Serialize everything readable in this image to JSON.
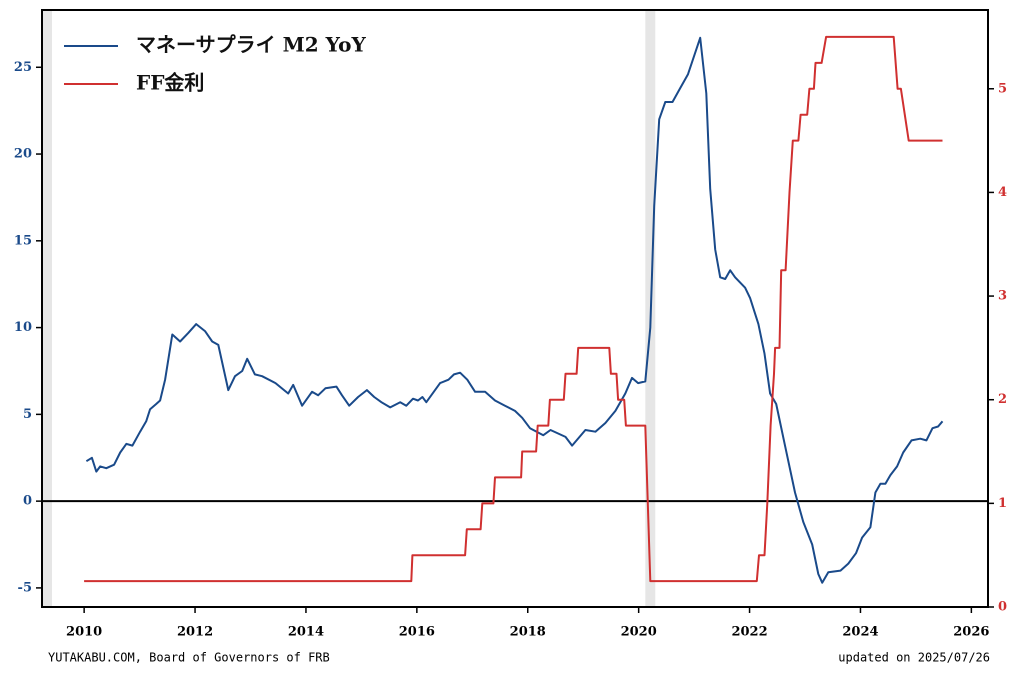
{
  "chart_data": {
    "type": "line",
    "legend": "upper left",
    "source": "YUTAKABU.COM, Board of Governors of FRB",
    "updated": "updated on 2025/07/26",
    "xlim": [
      2009.24,
      2026.3
    ],
    "xticks": [
      2010,
      2012,
      2014,
      2016,
      2018,
      2020,
      2022,
      2024,
      2026
    ],
    "ylim": [
      -6.1,
      28.3
    ],
    "yticks": [
      -5,
      0,
      5,
      10,
      15,
      20,
      25
    ],
    "y2lim": [
      0,
      5.76
    ],
    "y2ticks": [
      0,
      1,
      2,
      3,
      4,
      5
    ],
    "hline": 0,
    "shaded": [
      [
        2009.24,
        2009.42
      ],
      [
        2020.12,
        2020.3
      ]
    ],
    "series": [
      {
        "name": "マネーサプライ M2 YoY",
        "color": "#1a4a8a",
        "x": [
          2010.04,
          2010.14,
          2010.22,
          2010.29,
          2010.4,
          2010.54,
          2010.65,
          2010.76,
          2010.87,
          2011.01,
          2011.12,
          2011.19,
          2011.3,
          2011.37,
          2011.46,
          2011.59,
          2011.73,
          2011.88,
          2012.02,
          2012.18,
          2012.31,
          2012.42,
          2012.6,
          2012.72,
          2012.85,
          2012.94,
          2013.08,
          2013.21,
          2013.45,
          2013.68,
          2013.77,
          2013.93,
          2014.11,
          2014.22,
          2014.35,
          2014.55,
          2014.65,
          2014.78,
          2014.94,
          2015.1,
          2015.23,
          2015.36,
          2015.52,
          2015.7,
          2015.81,
          2015.93,
          2016.02,
          2016.1,
          2016.17,
          2016.42,
          2016.57,
          2016.67,
          2016.78,
          2016.91,
          2017.05,
          2017.23,
          2017.41,
          2017.59,
          2017.77,
          2017.9,
          2018.04,
          2018.28,
          2018.41,
          2018.68,
          2018.8,
          2019.04,
          2019.22,
          2019.4,
          2019.58,
          2019.76,
          2019.88,
          2019.99,
          2020.12,
          2020.21,
          2020.28,
          2020.37,
          2020.48,
          2020.61,
          2020.75,
          2020.89,
          2021.11,
          2021.22,
          2021.29,
          2021.38,
          2021.47,
          2021.56,
          2021.65,
          2021.74,
          2021.92,
          2022.01,
          2022.16,
          2022.27,
          2022.37,
          2022.48,
          2022.64,
          2022.82,
          2022.97,
          2023.13,
          2023.24,
          2023.31,
          2023.42,
          2023.64,
          2023.78,
          2023.92,
          2024.03,
          2024.18,
          2024.27,
          2024.36,
          2024.45,
          2024.54,
          2024.66,
          2024.77,
          2024.92,
          2025.08,
          2025.19,
          2025.3,
          2025.4,
          2025.48
        ],
        "values": [
          2.3,
          2.5,
          1.7,
          2.0,
          1.9,
          2.1,
          2.8,
          3.3,
          3.2,
          4.0,
          4.6,
          5.3,
          5.6,
          5.8,
          7.0,
          9.6,
          9.2,
          9.7,
          10.2,
          9.8,
          9.2,
          9.0,
          6.4,
          7.2,
          7.5,
          8.2,
          7.3,
          7.2,
          6.8,
          6.2,
          6.7,
          5.5,
          6.3,
          6.1,
          6.5,
          6.6,
          6.1,
          5.5,
          6.0,
          6.4,
          6.0,
          5.7,
          5.4,
          5.7,
          5.5,
          5.9,
          5.8,
          6.0,
          5.7,
          6.8,
          7.0,
          7.3,
          7.4,
          7.0,
          6.3,
          6.3,
          5.8,
          5.5,
          5.2,
          4.8,
          4.2,
          3.8,
          4.1,
          3.7,
          3.2,
          4.1,
          4.0,
          4.5,
          5.2,
          6.2,
          7.1,
          6.8,
          6.9,
          10.0,
          17.0,
          22.0,
          23.0,
          23.0,
          23.8,
          24.6,
          26.7,
          23.5,
          18.0,
          14.5,
          12.9,
          12.8,
          13.3,
          12.9,
          12.3,
          11.7,
          10.2,
          8.5,
          6.2,
          5.6,
          3.2,
          0.5,
          -1.2,
          -2.5,
          -4.2,
          -4.7,
          -4.1,
          -4.0,
          -3.6,
          -3.0,
          -2.1,
          -1.5,
          0.5,
          1.0,
          1.0,
          1.5,
          2.0,
          2.8,
          3.5,
          3.6,
          3.5,
          4.2,
          4.3,
          4.6
        ]
      },
      {
        "name": "FF金利",
        "color": "#d03030",
        "axis": "y2",
        "x": [
          2010.0,
          2015.9,
          2015.92,
          2016.87,
          2016.9,
          2017.15,
          2017.18,
          2017.38,
          2017.41,
          2017.88,
          2017.9,
          2018.15,
          2018.18,
          2018.37,
          2018.4,
          2018.65,
          2018.68,
          2018.88,
          2018.91,
          2019.47,
          2019.5,
          2019.6,
          2019.63,
          2019.74,
          2019.77,
          2020.12,
          2020.21,
          2022.13,
          2022.17,
          2022.27,
          2022.32,
          2022.38,
          2022.44,
          2022.46,
          2022.54,
          2022.57,
          2022.65,
          2022.72,
          2022.78,
          2022.88,
          2022.92,
          2023.04,
          2023.08,
          2023.16,
          2023.19,
          2023.3,
          2023.38,
          2024.6,
          2024.67,
          2024.73,
          2024.87,
          2025.48
        ],
        "values": [
          0.25,
          0.25,
          0.5,
          0.5,
          0.75,
          0.75,
          1.0,
          1.0,
          1.25,
          1.25,
          1.5,
          1.5,
          1.75,
          1.75,
          2.0,
          2.0,
          2.25,
          2.25,
          2.5,
          2.5,
          2.25,
          2.25,
          2.0,
          2.0,
          1.75,
          1.75,
          0.25,
          0.25,
          0.5,
          0.5,
          1.0,
          1.75,
          2.25,
          2.5,
          2.5,
          3.25,
          3.25,
          4.0,
          4.5,
          4.5,
          4.75,
          4.75,
          5.0,
          5.0,
          5.25,
          5.25,
          5.5,
          5.5,
          5.0,
          5.0,
          4.5,
          4.5
        ]
      }
    ]
  }
}
